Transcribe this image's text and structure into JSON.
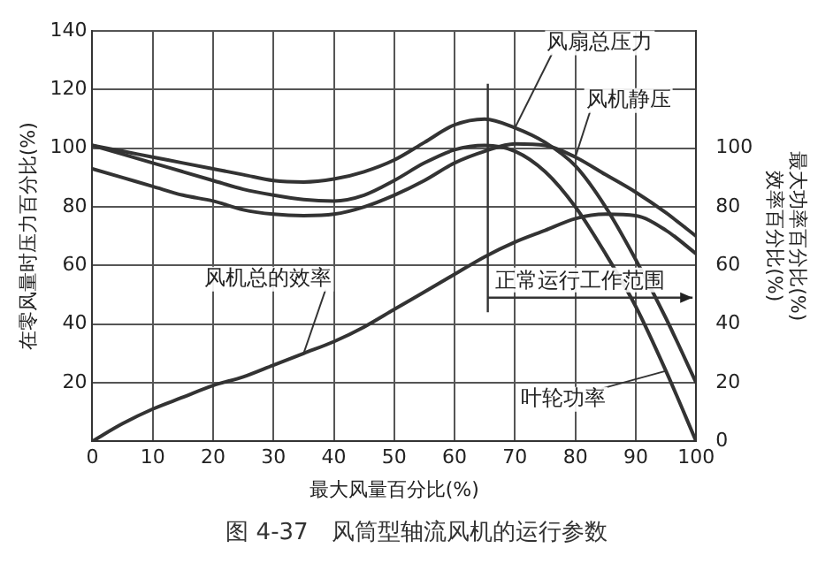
{
  "chart_data": {
    "type": "line",
    "xlabel": "最大风量百分比(%)",
    "ylabel": "在零风量时压力百分比(%)",
    "y2label": "最大功率百分比(%)\n效率百分比(%)",
    "x": [
      0,
      5,
      10,
      15,
      20,
      25,
      30,
      35,
      40,
      45,
      50,
      55,
      60,
      65,
      70,
      75,
      80,
      85,
      90,
      95,
      100
    ],
    "series": [
      {
        "name": "风扇总压力",
        "color": "#333333",
        "values": [
          101,
          99,
          97,
          95,
          93,
          91,
          89,
          88.5,
          89.5,
          92,
          96,
          102,
          108,
          110,
          107,
          102,
          94,
          80,
          62,
          42,
          20
        ]
      },
      {
        "name": "叶轮功率",
        "color": "#333333",
        "values": [
          101,
          98,
          95,
          92,
          89,
          86,
          84,
          82.5,
          82,
          84,
          89,
          95,
          99.5,
          101,
          99,
          92,
          80,
          64,
          46,
          24,
          0
        ]
      },
      {
        "name": "风机静压",
        "color": "#333333",
        "values": [
          93,
          90,
          87,
          84,
          82,
          79,
          77.5,
          77,
          77.5,
          80,
          84,
          89,
          95,
          99,
          101.5,
          101,
          97,
          91,
          85,
          78,
          70
        ]
      },
      {
        "name": "风机总的效率",
        "color": "#333333",
        "values": [
          0,
          6,
          11,
          15,
          19,
          22,
          26,
          30,
          34,
          39,
          45,
          51,
          57,
          63,
          68,
          72,
          76,
          77.5,
          77,
          72,
          64
        ]
      }
    ],
    "xlim": [
      0,
      100
    ],
    "xticks": [
      0,
      10,
      20,
      30,
      40,
      50,
      60,
      70,
      80,
      90,
      100
    ],
    "ylim": [
      0,
      140
    ],
    "yticks": [
      20,
      40,
      60,
      80,
      100,
      120,
      140
    ],
    "y2lim": [
      0,
      140
    ],
    "y2ticks": [
      0,
      20,
      40,
      60,
      80,
      100
    ],
    "grid": true,
    "legend": false,
    "marker": "none",
    "line_style": "solid",
    "ref_lines": [
      {
        "axis": "x",
        "value": 65.5,
        "label": "正常运行工作范围"
      }
    ],
    "annotations": [
      "图 4-37　风筒型轴流风机的运行参数"
    ]
  }
}
